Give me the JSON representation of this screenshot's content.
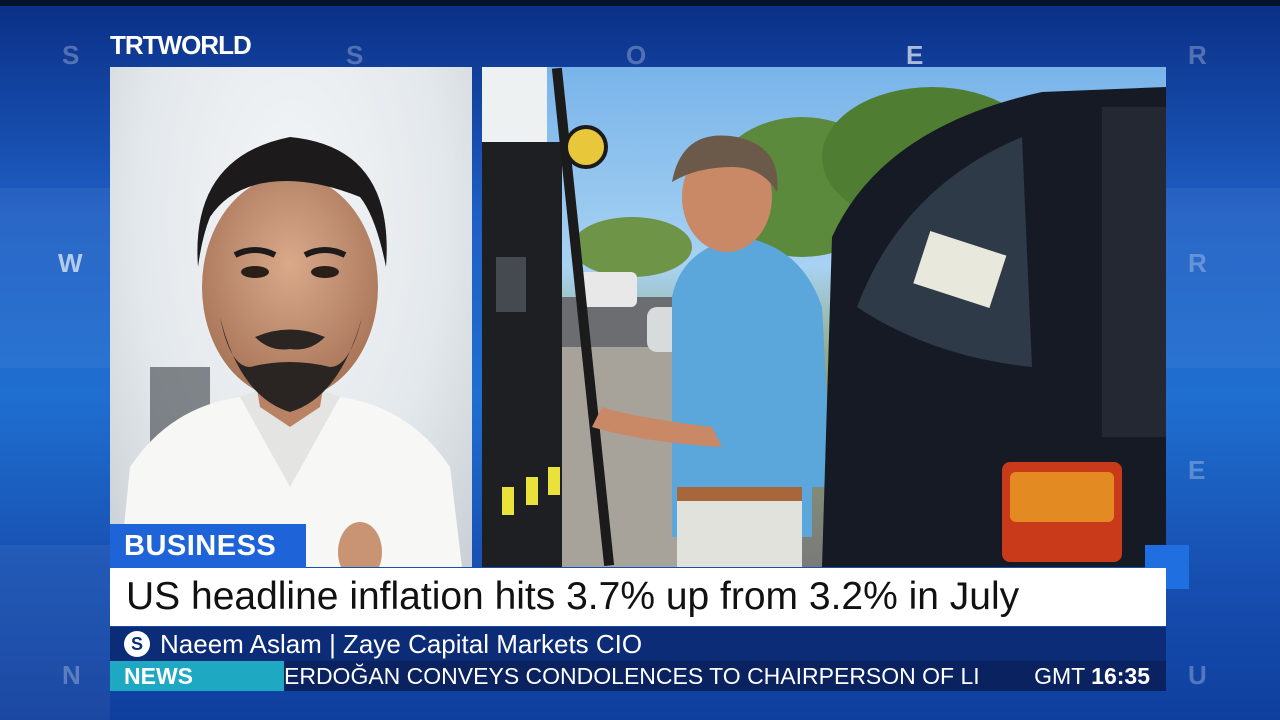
{
  "channel": {
    "logo_trt": "TRT",
    "logo_world": "WORLD"
  },
  "background_letters": [
    "S",
    "S",
    "O",
    "E",
    "R",
    "W",
    "R",
    "E",
    "N",
    "U"
  ],
  "lower_third": {
    "section": "BUSINESS",
    "headline": "US headline inflation hits 3.7% up from 3.2% in July",
    "guest_icon": "S",
    "guest": "Naeem Aslam | Zaye Capital Markets CIO"
  },
  "ticker": {
    "tag": "NEWS",
    "text": "ERDOĞAN CONVEYS CONDOLENCES TO CHAIRPERSON OF LI",
    "timezone": "GMT",
    "time": "16:35"
  },
  "colors": {
    "primary_blue": "#1f63d8",
    "dark_navy": "#0d2c78",
    "ticker_cyan": "#1fa8c2"
  }
}
